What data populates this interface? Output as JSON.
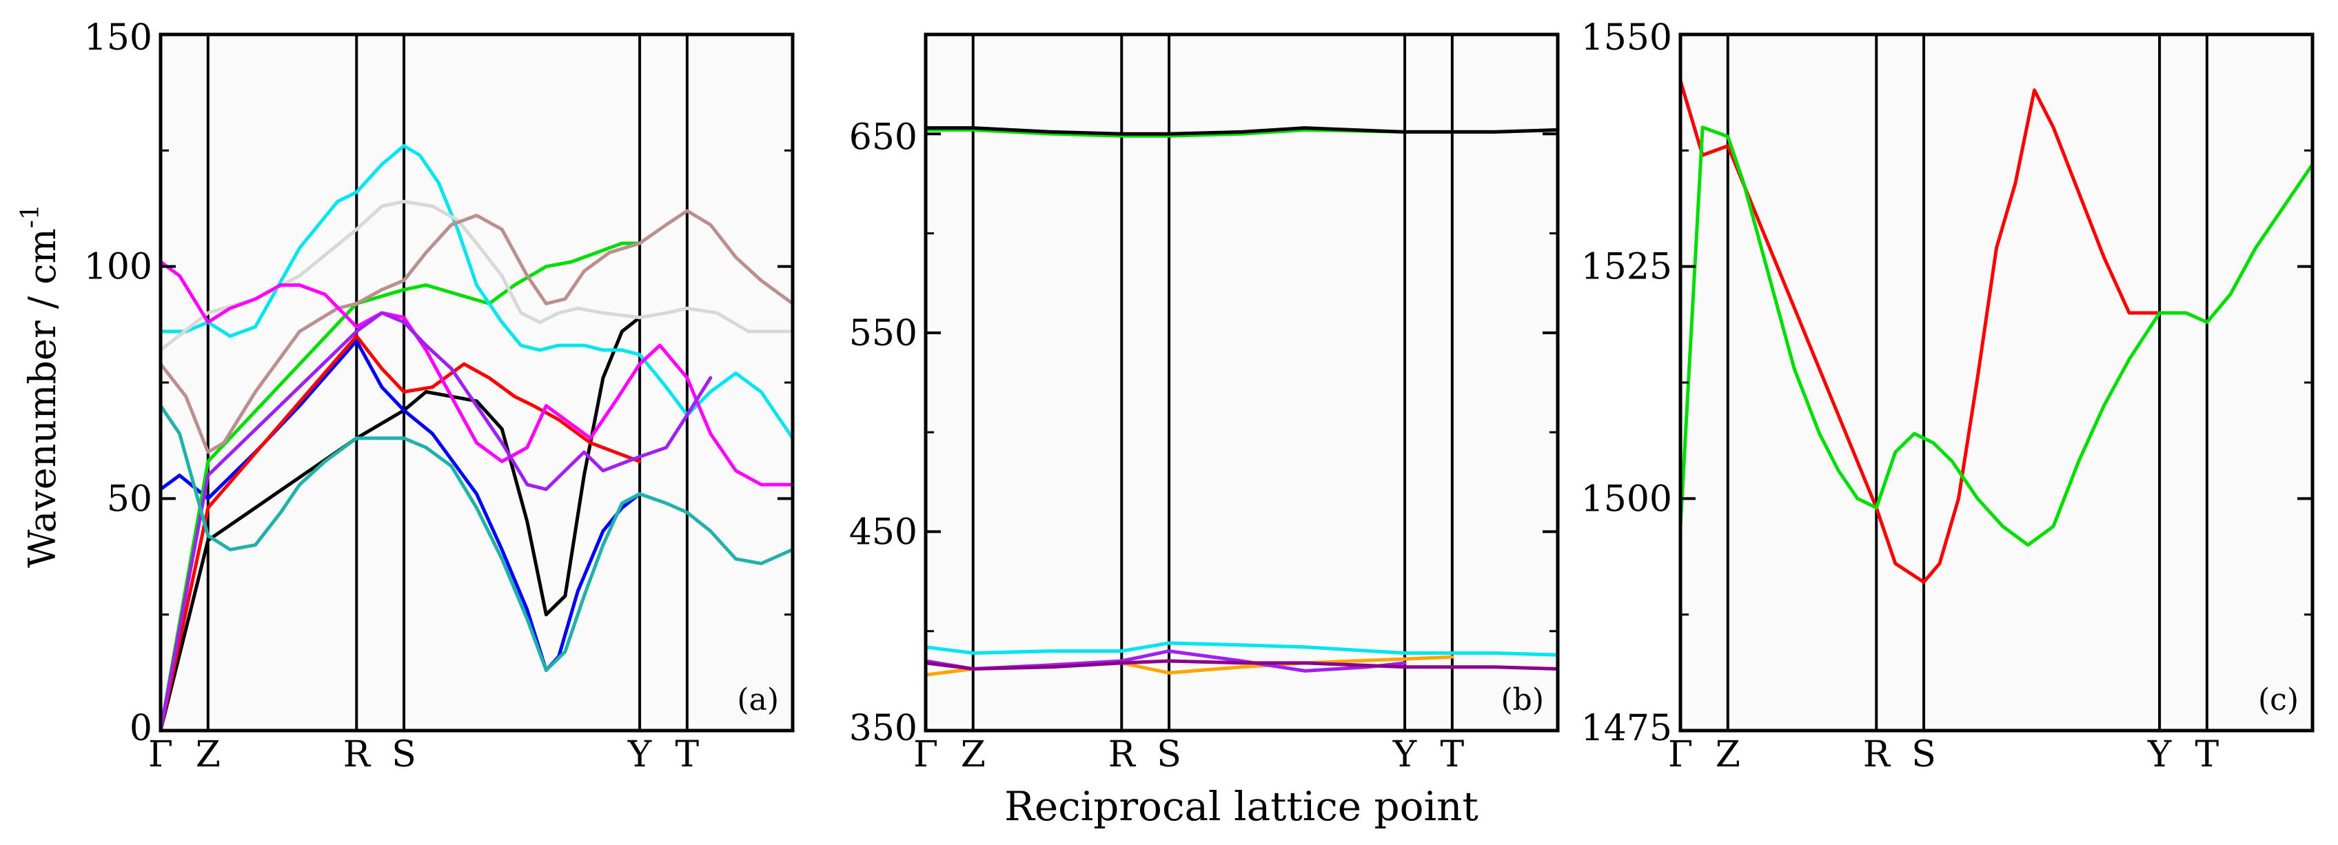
{
  "figure": {
    "ylabel_main": "Wavenumber / cm",
    "ylabel_sup": "-1",
    "xlabel": "Reciprocal lattice point",
    "path_labels": [
      "Γ",
      "Z",
      "R",
      "S",
      "Y",
      "T"
    ]
  },
  "chart_data": [
    {
      "type": "line",
      "panel_label": "(a)",
      "ylim": [
        0,
        150
      ],
      "xlim": [
        0,
        100
      ],
      "y_ticks": [
        0,
        50,
        100,
        150
      ],
      "y_tick_labels": [
        "0",
        "50",
        "100",
        "150"
      ],
      "hs_positions": [
        0,
        7.5,
        31,
        38.5,
        75.8,
        83.3
      ],
      "series": [
        {
          "name": "black",
          "color": "#000000",
          "x": [
            0,
            7.5,
            31,
            38.5,
            42,
            46,
            50,
            54,
            58,
            61,
            64,
            67,
            70,
            73,
            75.8
          ],
          "y": [
            0,
            41,
            63,
            69,
            73,
            72,
            71,
            65,
            45,
            25,
            29,
            55,
            76,
            86,
            89
          ]
        },
        {
          "name": "blue",
          "color": "#0000ff",
          "x": [
            0,
            3,
            7.5,
            15,
            22,
            31,
            35,
            38.5,
            43,
            50,
            54,
            58,
            61,
            63,
            66,
            70,
            73,
            75.8
          ],
          "y": [
            52,
            55,
            50,
            60,
            70,
            84,
            74,
            69,
            64,
            51,
            39,
            26,
            13,
            16,
            30,
            43,
            48,
            51
          ]
        },
        {
          "name": "red",
          "color": "#ff0000",
          "x": [
            0,
            7.5,
            31,
            35,
            38.5,
            43,
            48,
            52,
            56,
            59,
            63,
            68,
            75.8
          ],
          "y": [
            0,
            48,
            85,
            78,
            73,
            74,
            79,
            76,
            72,
            70,
            67,
            62,
            58
          ]
        },
        {
          "name": "green",
          "color": "#00dd00",
          "x": [
            0,
            7.5,
            31,
            38.5,
            42,
            47,
            52,
            56,
            61,
            65,
            69,
            73,
            75.8
          ],
          "y": [
            0,
            58,
            92,
            95,
            96,
            94,
            92,
            96,
            100,
            101,
            103,
            105,
            105
          ]
        },
        {
          "name": "cyan",
          "color": "#00e5ee",
          "x": [
            0,
            4,
            7.5,
            11,
            15,
            22,
            28,
            31,
            35,
            38.5,
            41,
            44,
            47,
            50,
            54,
            57,
            60,
            63,
            67,
            70,
            73,
            75.8,
            80,
            83.3,
            87,
            91,
            95,
            100
          ],
          "y": [
            86,
            86,
            88,
            85,
            87,
            104,
            114,
            116,
            122,
            126,
            124,
            118,
            108,
            96,
            88,
            83,
            82,
            83,
            83,
            82,
            82,
            81,
            74,
            68,
            73,
            77,
            73,
            63
          ]
        },
        {
          "name": "light gray",
          "color": "#d8d8d8",
          "x": [
            0,
            7.5,
            15,
            22,
            31,
            35,
            38.5,
            43,
            47,
            50,
            54,
            57,
            60,
            63,
            66,
            70,
            75.8,
            80,
            83.3,
            88,
            93,
            100
          ],
          "y": [
            82,
            90,
            93,
            98,
            108,
            113,
            114,
            113,
            110,
            105,
            98,
            90,
            88,
            90,
            91,
            90,
            89,
            90,
            91,
            90,
            86,
            86
          ]
        },
        {
          "name": "rosy brown",
          "color": "#bc8f8f",
          "x": [
            0,
            4,
            7.5,
            10,
            15,
            22,
            28,
            31,
            35,
            38.5,
            42,
            46,
            50,
            54,
            58,
            61,
            64,
            67,
            71,
            75.8,
            80,
            83.3,
            87,
            91,
            95,
            100
          ],
          "y": [
            79,
            72,
            60,
            62,
            73,
            86,
            91,
            92,
            95,
            97,
            103,
            109,
            111,
            108,
            98,
            92,
            93,
            99,
            103,
            105,
            109,
            112,
            109,
            102,
            97,
            92
          ]
        },
        {
          "name": "magenta",
          "color": "#ff00ff",
          "x": [
            0,
            3,
            7.5,
            11,
            15,
            19,
            22,
            26,
            31,
            35,
            38.5,
            42,
            46,
            50,
            54,
            58,
            61,
            64,
            68,
            72,
            75.8,
            79,
            83.3,
            87,
            91,
            95,
            100
          ],
          "y": [
            101,
            98,
            88,
            91,
            93,
            96,
            96,
            94,
            87,
            90,
            89,
            82,
            72,
            62,
            58,
            61,
            70,
            67,
            63,
            71,
            79,
            83,
            76,
            64,
            56,
            53,
            53
          ]
        },
        {
          "name": "dark magenta",
          "color": "#a020f0",
          "x": [
            0,
            7.5,
            31,
            35,
            38.5,
            42,
            46,
            50,
            54,
            58,
            61,
            64,
            67,
            70,
            75.8,
            80,
            83.3,
            87
          ],
          "y": [
            0,
            55,
            86,
            90,
            88,
            83,
            78,
            70,
            62,
            53,
            52,
            56,
            60,
            56,
            59,
            61,
            68,
            76
          ]
        },
        {
          "name": "teal",
          "color": "#20b2aa",
          "x": [
            0,
            3,
            7.5,
            11,
            15,
            19,
            22,
            26,
            31,
            35,
            38.5,
            42,
            46,
            50,
            54,
            58,
            61,
            64,
            67,
            70,
            73,
            75.8,
            80,
            83.3,
            87,
            91,
            95,
            100
          ],
          "y": [
            70,
            64,
            42,
            39,
            40,
            47,
            53,
            58,
            63,
            63,
            63,
            61,
            57,
            48,
            37,
            24,
            13,
            17,
            29,
            40,
            49,
            51,
            49,
            47,
            43,
            37,
            36,
            39
          ]
        }
      ]
    },
    {
      "type": "line",
      "panel_label": "(b)",
      "ylim": [
        350,
        700
      ],
      "xlim": [
        0,
        100
      ],
      "y_ticks": [
        350,
        450,
        550,
        650
      ],
      "y_tick_labels": [
        "350",
        "450",
        "550",
        "650"
      ],
      "hs_positions": [
        0,
        7.5,
        31,
        38.5,
        75.8,
        83.3
      ],
      "series": [
        {
          "name": "green",
          "color": "#00dd00",
          "x": [
            0,
            7.5,
            20,
            31,
            38.5,
            50,
            60,
            75.8,
            90,
            100
          ],
          "y": [
            652,
            652,
            650,
            649,
            649,
            650,
            652,
            651,
            651,
            652
          ]
        },
        {
          "name": "black",
          "color": "#000000",
          "x": [
            0,
            7.5,
            20,
            31,
            38.5,
            50,
            60,
            75.8,
            90,
            100
          ],
          "y": [
            653,
            653,
            651,
            650,
            650,
            651,
            653,
            651,
            651,
            652
          ]
        },
        {
          "name": "cyan",
          "color": "#00e5ee",
          "x": [
            0,
            7.5,
            20,
            31,
            38.5,
            50,
            60,
            75.8,
            90,
            100
          ],
          "y": [
            392,
            389,
            390,
            390,
            394,
            393,
            392,
            389,
            389,
            388
          ]
        },
        {
          "name": "orange",
          "color": "#ffa500",
          "x": [
            0,
            7.5,
            20,
            31,
            38.5,
            50,
            60,
            75.8,
            83.3
          ],
          "y": [
            378,
            381,
            383,
            384,
            379,
            382,
            384,
            386,
            387
          ]
        },
        {
          "name": "purple",
          "color": "#a020f0",
          "x": [
            0,
            7.5,
            20,
            31,
            38.5,
            50,
            60,
            70,
            75.8
          ],
          "y": [
            385,
            381,
            383,
            385,
            390,
            385,
            380,
            382,
            384
          ]
        },
        {
          "name": "dark purple",
          "color": "#8b008b",
          "x": [
            0,
            7.5,
            20,
            31,
            38.5,
            50,
            60,
            75.8,
            90,
            100
          ],
          "y": [
            384,
            381,
            382,
            384,
            385,
            384,
            384,
            382,
            382,
            381
          ]
        }
      ]
    },
    {
      "type": "line",
      "panel_label": "(c)",
      "ylim": [
        1475,
        1550
      ],
      "xlim": [
        0,
        100
      ],
      "y_ticks": [
        1475,
        1500,
        1525,
        1550
      ],
      "y_tick_labels": [
        "1475",
        "1500",
        "1525",
        "1550"
      ],
      "hs_positions": [
        0,
        7.5,
        31,
        38.5,
        75.8,
        83.3
      ],
      "series": [
        {
          "name": "red",
          "color": "#ff0000",
          "x": [
            0,
            3.5,
            7.5,
            31,
            34,
            38.5,
            41,
            44,
            47,
            50,
            53,
            56,
            59,
            63,
            67,
            71,
            75.8
          ],
          "y": [
            1545,
            1537,
            1538,
            1499,
            1493,
            1491,
            1493,
            1500,
            1513,
            1527,
            1534,
            1544,
            1540,
            1533,
            1526,
            1520,
            1520
          ]
        },
        {
          "name": "green",
          "color": "#00dd00",
          "x": [
            0,
            3.5,
            7.5,
            10,
            14,
            18,
            22,
            25,
            28,
            31,
            34,
            37,
            40,
            43,
            47,
            51,
            55,
            59,
            63,
            67,
            71,
            75.8,
            80,
            83.3,
            87,
            91,
            95,
            100
          ],
          "y": [
            1497,
            1540,
            1539,
            1534,
            1524,
            1514,
            1507,
            1503,
            1500,
            1499,
            1505,
            1507,
            1506,
            1504,
            1500,
            1497,
            1495,
            1497,
            1504,
            1510,
            1515,
            1520,
            1520,
            1519,
            1522,
            1527,
            1531,
            1536
          ]
        }
      ]
    }
  ]
}
